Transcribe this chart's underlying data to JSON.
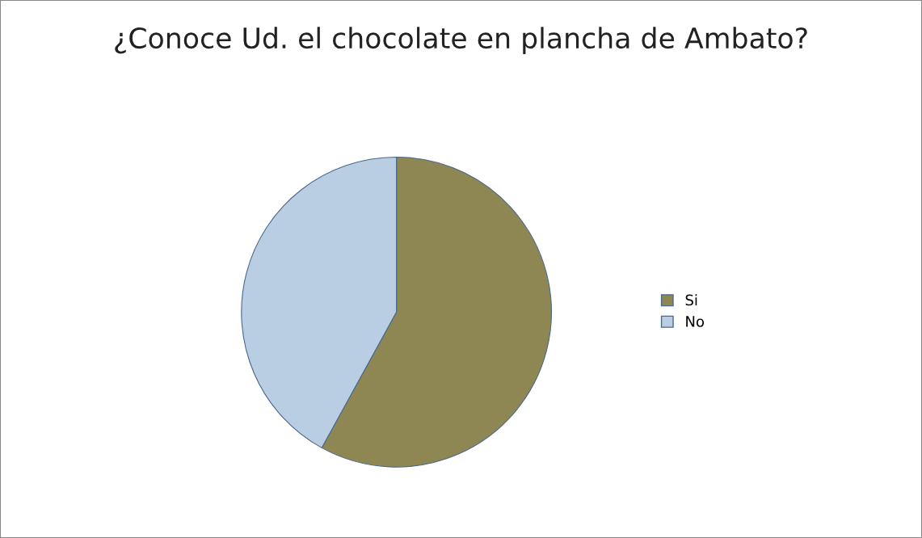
{
  "chart_data": {
    "type": "pie",
    "title": "¿Conoce Ud. el chocolate en plancha de Ambato?",
    "categories": [
      "Si",
      "No"
    ],
    "values": [
      58,
      42
    ],
    "colors": [
      "#8f8753",
      "#b9cde3"
    ],
    "legend": "right"
  }
}
